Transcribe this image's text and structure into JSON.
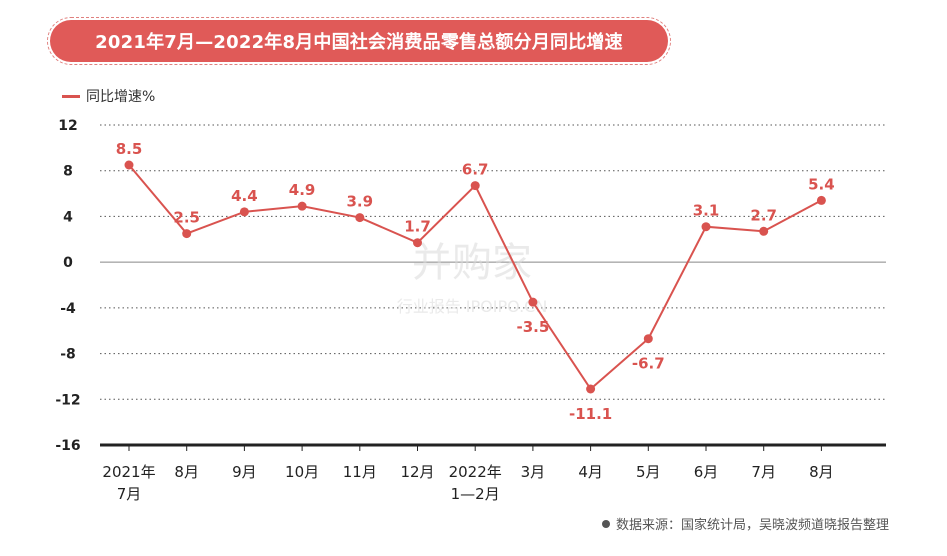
{
  "header": {
    "title": "2021年7月—2022年8月中国社会消费品零售总额分月同比增速"
  },
  "legend": {
    "label": "同比增速%",
    "color": "#d9534f"
  },
  "watermark": {
    "brand": "并购家",
    "subtitle": "行业报告 IPOIPO.CN"
  },
  "source": {
    "text": "数据来源：国家统计局，吴晓波频道晓报告整理"
  },
  "colors": {
    "accent": "#e05a58",
    "line": "#d9534f",
    "label": "#d9534f",
    "axis": "#222222"
  },
  "chart_data": {
    "type": "line",
    "categories": [
      [
        "2021年",
        "7月"
      ],
      [
        "8月"
      ],
      [
        "9月"
      ],
      [
        "10月"
      ],
      [
        "11月"
      ],
      [
        "12月"
      ],
      [
        "2022年",
        "1—2月"
      ],
      [
        "3月"
      ],
      [
        "4月"
      ],
      [
        "5月"
      ],
      [
        "6月"
      ],
      [
        "7月"
      ],
      [
        "8月"
      ]
    ],
    "series": [
      {
        "name": "同比增速%",
        "values": [
          8.5,
          2.5,
          4.4,
          4.9,
          3.9,
          1.7,
          6.7,
          -3.5,
          -11.1,
          -6.7,
          3.1,
          2.7,
          5.4
        ],
        "data_labels": [
          "8.5",
          "2.5",
          "4.4",
          "4.9",
          "3.9",
          "1.7",
          "6.7",
          "-3.5",
          "-11.1",
          "-6.7",
          "3.1",
          "2.7",
          "5.4"
        ]
      }
    ],
    "yticks": [
      "12",
      "8",
      "4",
      "0",
      "-4",
      "-8",
      "-12",
      "-16"
    ],
    "ytick_values": [
      12,
      8,
      4,
      0,
      -4,
      -8,
      -12,
      -16
    ],
    "ylim": [
      -16,
      12
    ],
    "grid": true,
    "legend_position": "top-left"
  }
}
